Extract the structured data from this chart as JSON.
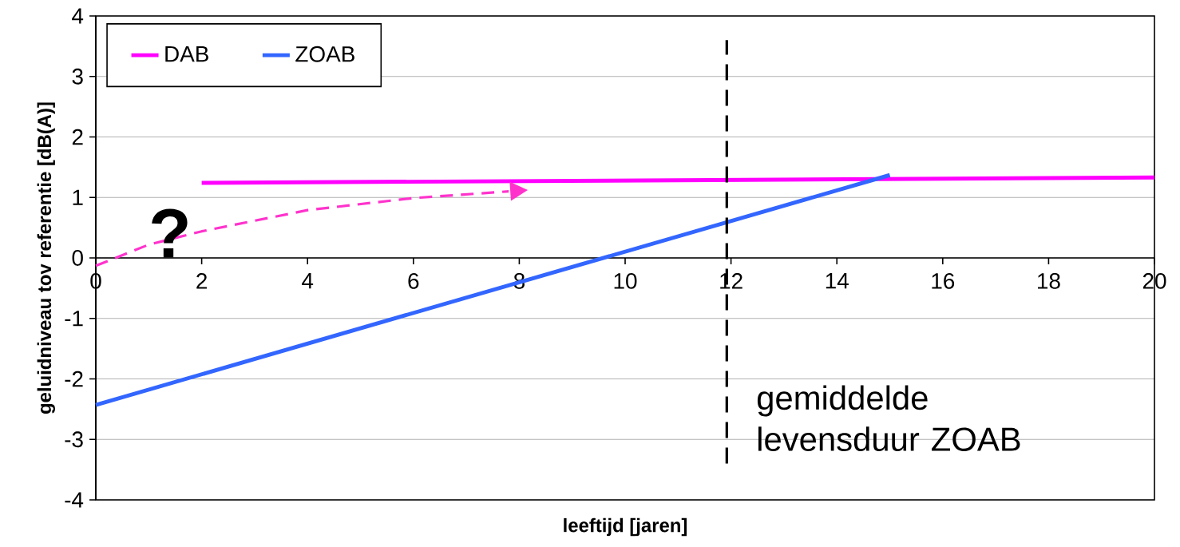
{
  "chart_data": {
    "type": "line",
    "xlabel": "leeftijd [jaren]",
    "ylabel": "geluidniveau tov referentie [dB(A)]",
    "xlim": [
      0,
      20
    ],
    "ylim": [
      -4,
      4
    ],
    "xticks": [
      0,
      2,
      4,
      6,
      8,
      10,
      12,
      14,
      16,
      18,
      20
    ],
    "yticks": [
      -4,
      -3,
      -2,
      -1,
      0,
      1,
      2,
      3,
      4
    ],
    "grid": "y",
    "legend": "top left",
    "marker": "none",
    "series": [
      {
        "name": "DAB",
        "color": "#ff00ff",
        "x": [
          2,
          20
        ],
        "values": [
          1.24,
          1.33
        ],
        "line_style": "solid"
      },
      {
        "name": "ZOAB",
        "color": "#3366ff",
        "x": [
          0,
          15
        ],
        "values": [
          -2.43,
          1.37
        ],
        "line_style": "solid"
      },
      {
        "color": "#ff33cc",
        "x": [
          0,
          1,
          2,
          4,
          6,
          7.8
        ],
        "values": [
          -0.13,
          0.22,
          0.44,
          0.79,
          0.99,
          1.1
        ],
        "line_style": "dashed"
      }
    ],
    "ref_lines": [
      {
        "axis": "x",
        "value": 11.92,
        "label": "gemiddelde levensduur ZOAB",
        "color": "#000000",
        "line_style": "dashed"
      }
    ],
    "annotations": [
      "?"
    ]
  }
}
